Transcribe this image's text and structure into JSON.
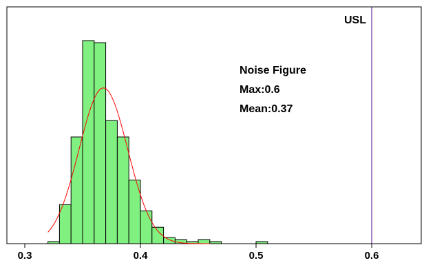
{
  "chart_data": {
    "type": "bar",
    "title": "",
    "xlabel": "",
    "ylabel": "",
    "xlim": [
      0.3,
      0.62
    ],
    "ylim": [
      0,
      100
    ],
    "x_ticks": [
      "0.3",
      "0.4",
      "0.5",
      "0.6"
    ],
    "x_tick_values": [
      0.3,
      0.4,
      0.5,
      0.6
    ],
    "bin_width": 0.01,
    "bins": [
      {
        "start": 0.32,
        "end": 0.33,
        "count": 1
      },
      {
        "start": 0.33,
        "end": 0.34,
        "count": 19
      },
      {
        "start": 0.34,
        "end": 0.35,
        "count": 52
      },
      {
        "start": 0.35,
        "end": 0.36,
        "count": 99
      },
      {
        "start": 0.36,
        "end": 0.37,
        "count": 98
      },
      {
        "start": 0.37,
        "end": 0.38,
        "count": 60
      },
      {
        "start": 0.38,
        "end": 0.39,
        "count": 52
      },
      {
        "start": 0.39,
        "end": 0.4,
        "count": 31
      },
      {
        "start": 0.4,
        "end": 0.41,
        "count": 16
      },
      {
        "start": 0.41,
        "end": 0.42,
        "count": 8
      },
      {
        "start": 0.42,
        "end": 0.43,
        "count": 3
      },
      {
        "start": 0.43,
        "end": 0.44,
        "count": 2
      },
      {
        "start": 0.44,
        "end": 0.45,
        "count": 1
      },
      {
        "start": 0.45,
        "end": 0.46,
        "count": 2
      },
      {
        "start": 0.46,
        "end": 0.47,
        "count": 1
      },
      {
        "start": 0.5,
        "end": 0.51,
        "count": 1
      }
    ],
    "fit_curve": {
      "type": "normal",
      "mean": 0.368,
      "sd": 0.021,
      "peak": 76,
      "x_range": [
        0.32,
        0.46
      ],
      "color": "#ff0000"
    },
    "limit_line": {
      "label": "USL",
      "x": 0.6,
      "color": "#4b0082"
    },
    "annotation": {
      "lines": [
        "Noise Figure",
        "Max:0.6",
        "Mean:0.37"
      ]
    },
    "colors": {
      "bar_fill": "#80f080",
      "bar_stroke": "#000000",
      "frame": "#000000",
      "background": "#ffffff"
    },
    "grid": false,
    "legend": "none"
  }
}
